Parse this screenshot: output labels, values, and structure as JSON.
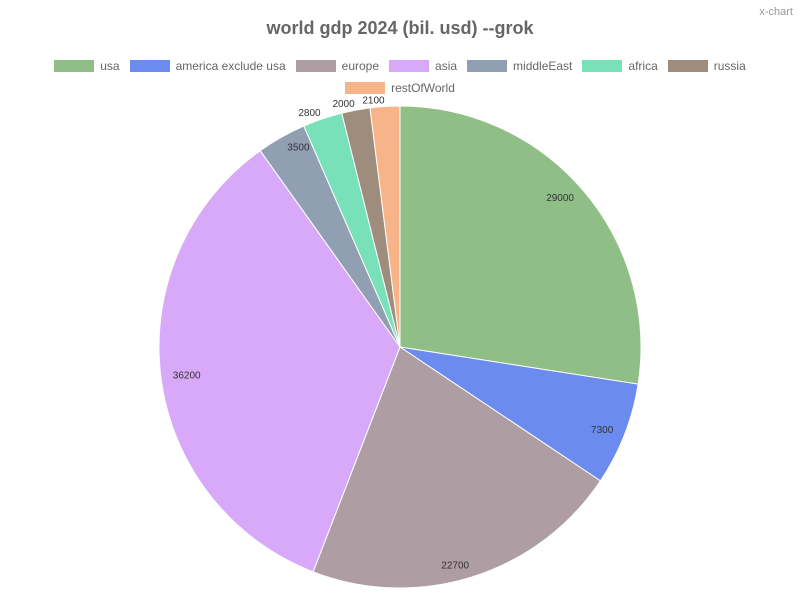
{
  "watermark": "x-chart",
  "chart_data": {
    "type": "pie",
    "title": "world gdp 2024 (bil. usd) --grok",
    "legend_position": "top",
    "slices": [
      {
        "label": "usa",
        "value": 29000,
        "color": "#8fbf87"
      },
      {
        "label": "america exclude usa",
        "value": 7300,
        "color": "#6b8bee"
      },
      {
        "label": "europe",
        "value": 22700,
        "color": "#ae9da3"
      },
      {
        "label": "asia",
        "value": 36200,
        "color": "#d8a8f9"
      },
      {
        "label": "middleEast",
        "value": 3500,
        "color": "#919fb2"
      },
      {
        "label": "africa",
        "value": 2800,
        "color": "#78e1b9"
      },
      {
        "label": "russia",
        "value": 2000,
        "color": "#9e8c7d"
      },
      {
        "label": "restOfWorld",
        "value": 2100,
        "color": "#f7b488"
      }
    ]
  }
}
